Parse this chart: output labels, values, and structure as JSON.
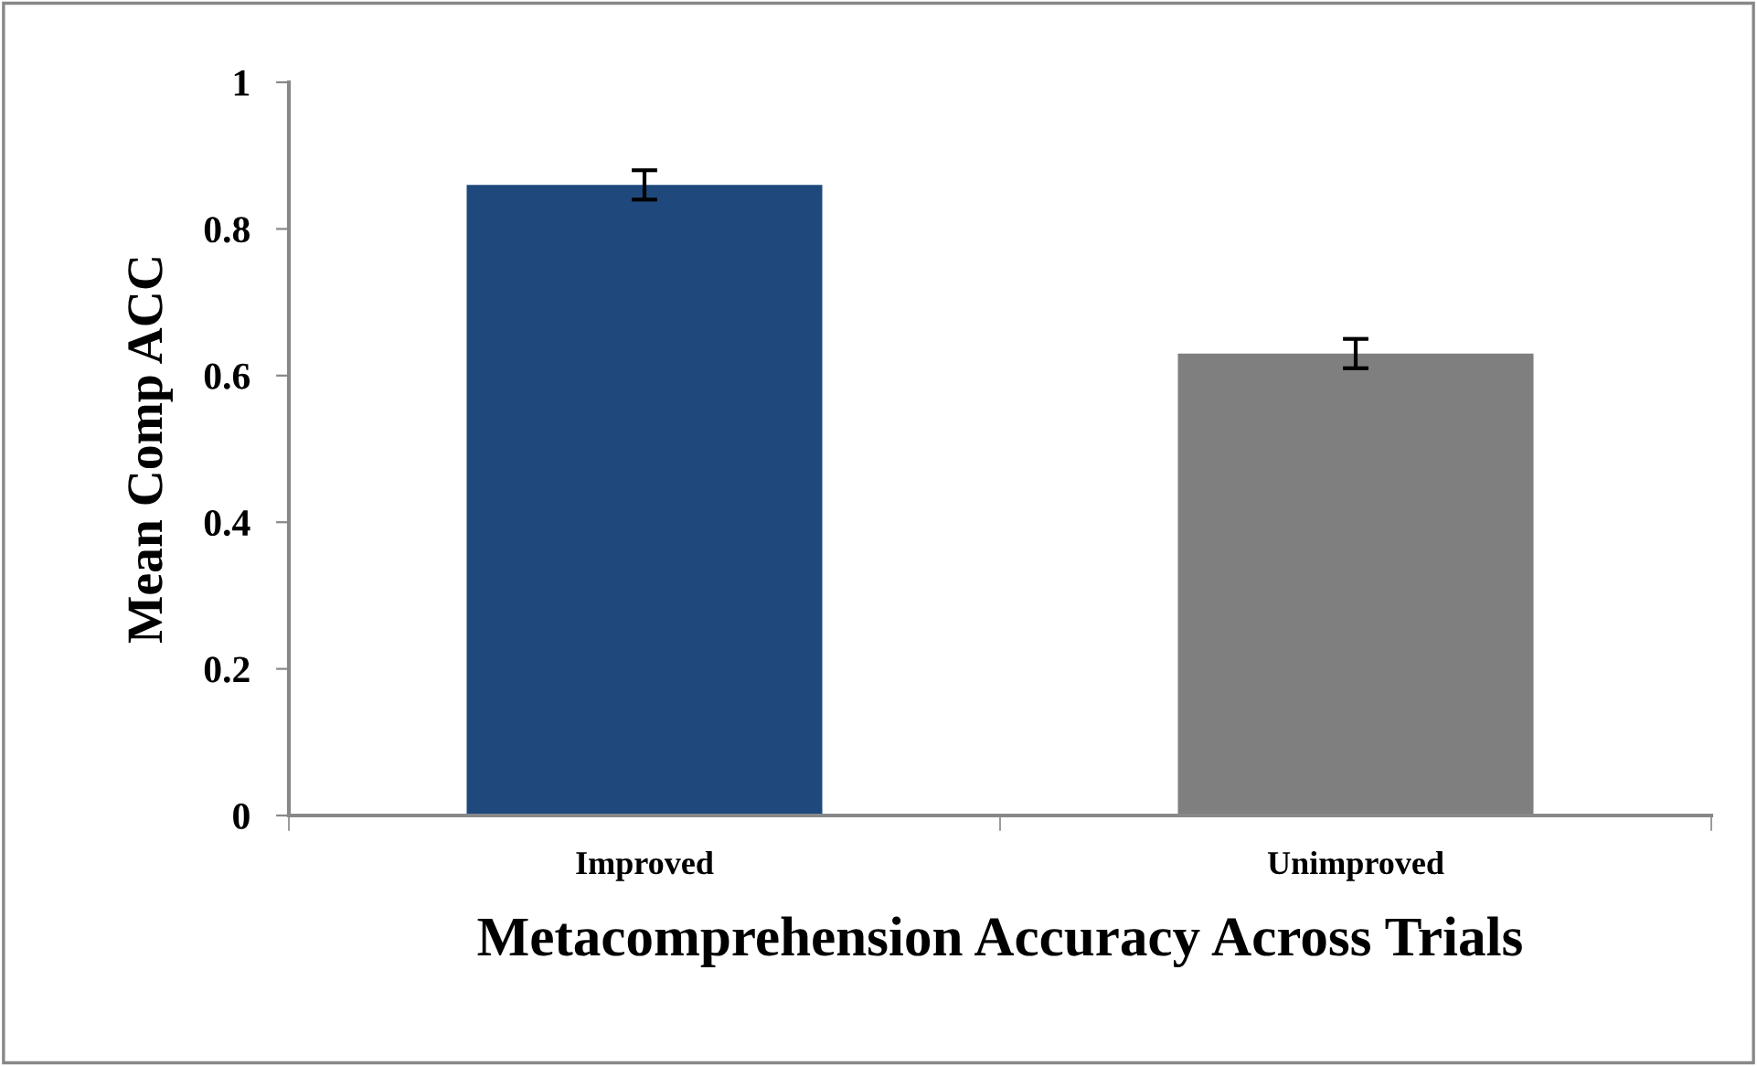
{
  "chart_data": {
    "type": "bar",
    "xlabel": "Metacomprehension Accuracy Across Trials",
    "ylabel": "Mean Comp ACC",
    "categories": [
      "Improved",
      "Unimproved"
    ],
    "values": [
      0.86,
      0.63
    ],
    "colors": [
      "#1f497d",
      "#7f7f7f"
    ],
    "errors": [
      0.02,
      0.02
    ],
    "ylim": [
      0,
      1
    ],
    "yticks": [
      0,
      0.2,
      0.4,
      0.6,
      0.8,
      1
    ],
    "grid": false,
    "legend": false
  }
}
